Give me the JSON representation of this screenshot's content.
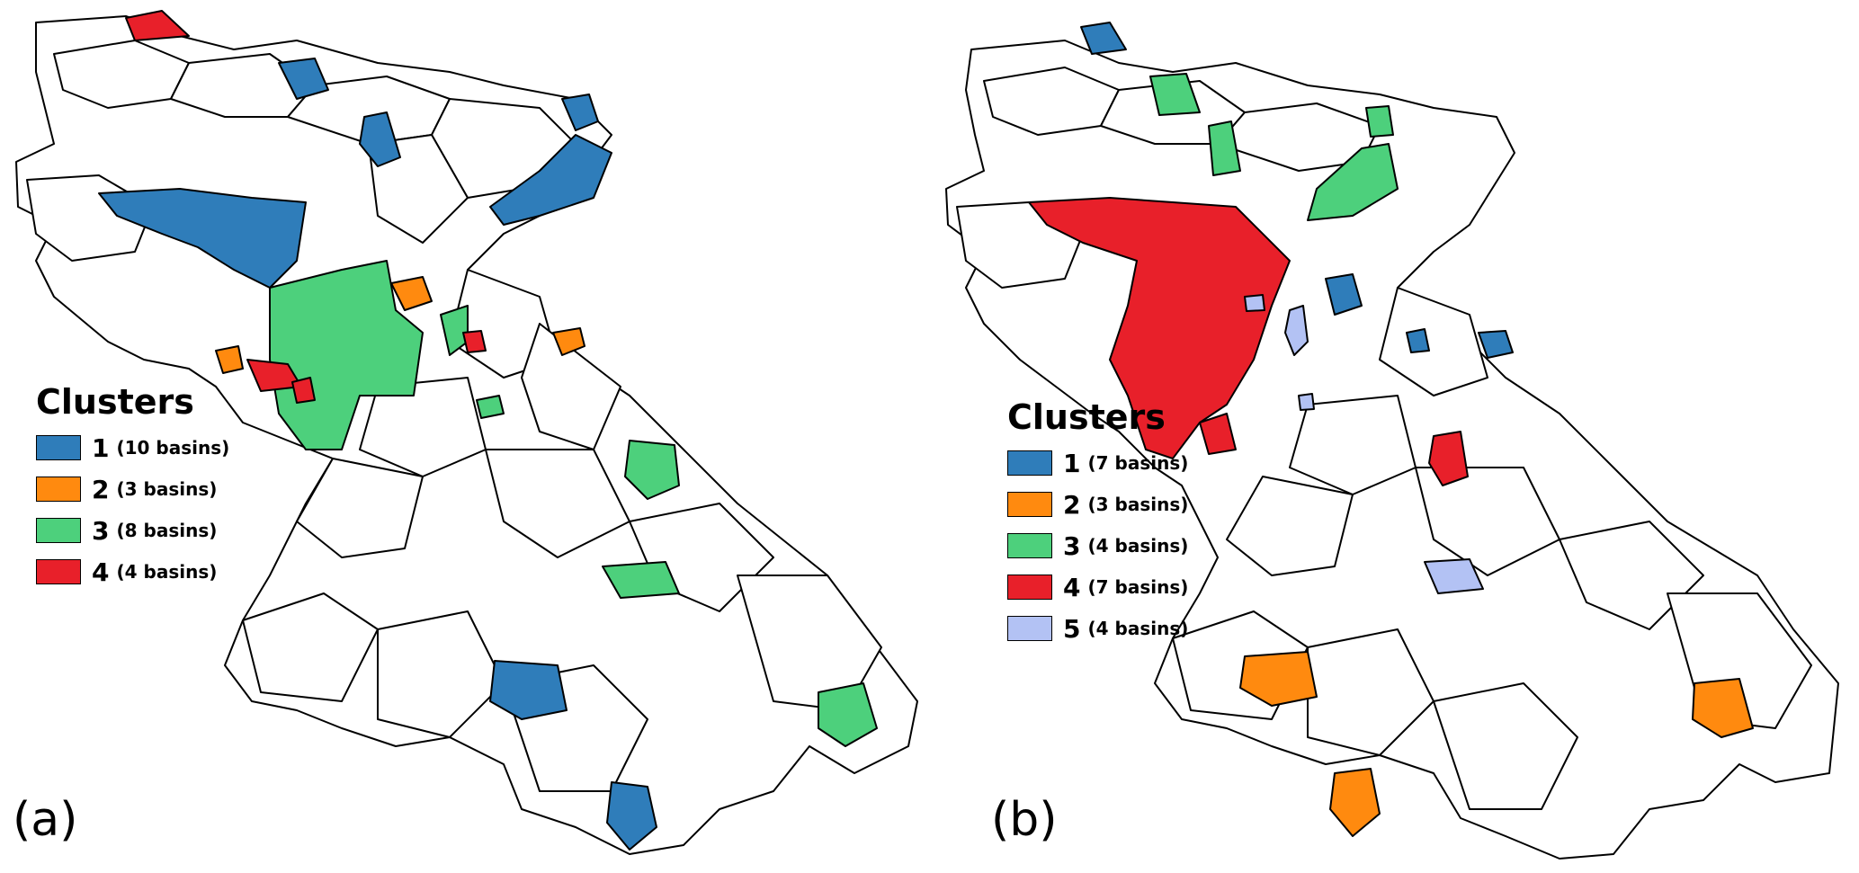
{
  "colors": {
    "cluster_1": "#2f7dba",
    "cluster_2": "#ff8a0f",
    "cluster_3": "#4dd07c",
    "cluster_4": "#e8202a",
    "cluster_5": "#b3c2f4",
    "unassigned": "#ffffff",
    "border": "#000000"
  },
  "panel_a": {
    "label": "(a)",
    "legend": {
      "title": "Clusters",
      "items": [
        {
          "number": "1",
          "count": "(10 basins)",
          "color": "#2f7dba"
        },
        {
          "number": "2",
          "count": "(3 basins)",
          "color": "#ff8a0f"
        },
        {
          "number": "3",
          "count": "(8 basins)",
          "color": "#4dd07c"
        },
        {
          "number": "4",
          "count": "(4 basins)",
          "color": "#e8202a"
        }
      ]
    }
  },
  "panel_b": {
    "label": "(b)",
    "legend": {
      "title": "Clusters",
      "items": [
        {
          "number": "1",
          "count": "(7 basins)",
          "color": "#2f7dba"
        },
        {
          "number": "2",
          "count": "(3 basins)",
          "color": "#ff8a0f"
        },
        {
          "number": "3",
          "count": "(4 basins)",
          "color": "#4dd07c"
        },
        {
          "number": "4",
          "count": "(7 basins)",
          "color": "#e8202a"
        },
        {
          "number": "5",
          "count": "(4 basins)",
          "color": "#b3c2f4"
        }
      ]
    }
  }
}
